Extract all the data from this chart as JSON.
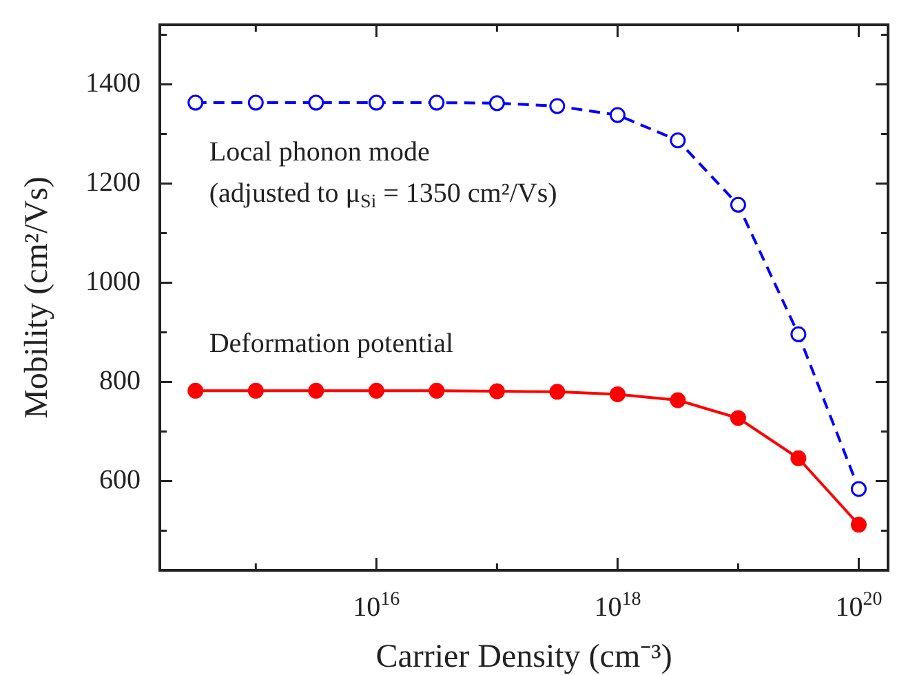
{
  "chart_data": {
    "type": "line",
    "xlabel": "Carrier Density (cm⁻³)",
    "ylabel": "Mobility (cm²/Vs)",
    "log": "x",
    "x": [
      316000000000000.0,
      1000000000000000.0,
      3160000000000000.0,
      1e+16,
      3.16e+16,
      1e+17,
      3.16e+17,
      1e+18,
      3.16e+18,
      1e+19,
      3.16e+19,
      1e+20
    ],
    "series": [
      {
        "name": "Local phonon mode\n(adjusted to μ$_{Si}$ = 1350 cm²/Vs)",
        "color": "#0000ff",
        "line_style": "dashed",
        "marker": "circle",
        "values": [
          1363,
          1363,
          1363,
          1363,
          1363,
          1362,
          1356,
          1338,
          1287,
          1157,
          896,
          584
        ]
      },
      {
        "name": "Deformation potential",
        "color": "#ff0000",
        "line_style": "solid",
        "marker": "circle",
        "values": [
          782,
          782,
          782,
          782,
          782,
          781,
          780,
          775,
          763,
          727,
          646,
          512
        ]
      }
    ],
    "xlim": [
      160000000000000.0,
      1.75e+20
    ],
    "xticks": [
      {
        "value": 1000000000000000.0,
        "label": null
      },
      {
        "value": 1e+16,
        "label": "10$^{16}$"
      },
      {
        "value": 1e+17,
        "label": null
      },
      {
        "value": 1e+18,
        "label": "10$^{18}$"
      },
      {
        "value": 1e+19,
        "label": null
      },
      {
        "value": 1e+20,
        "label": "10$^{20}$"
      }
    ],
    "ylim": [
      420,
      1520
    ],
    "yticks": [
      {
        "value": 500,
        "label": null
      },
      600,
      {
        "value": 700,
        "label": null
      },
      800,
      {
        "value": 900,
        "label": null
      },
      1000,
      {
        "value": 1100,
        "label": null
      },
      1200,
      {
        "value": 1300,
        "label": null
      },
      1400,
      {
        "value": 1500,
        "label": null
      }
    ],
    "grid": false,
    "legend": false
  }
}
